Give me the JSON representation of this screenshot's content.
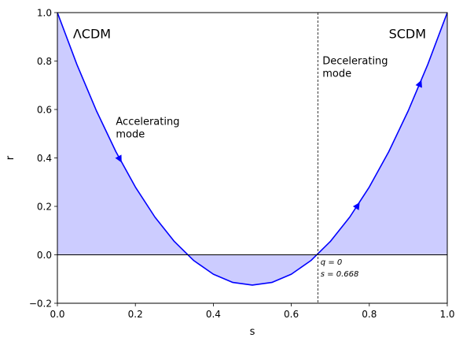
{
  "chart_data": {
    "type": "line",
    "xlabel": "s",
    "ylabel": "r",
    "xlim": [
      0.0,
      1.0
    ],
    "ylim": [
      -0.2,
      1.0
    ],
    "x_ticks": [
      "0.0",
      "0.2",
      "0.4",
      "0.6",
      "0.8",
      "1.0"
    ],
    "y_ticks": [
      "−0.2",
      "0.0",
      "0.2",
      "0.4",
      "0.6",
      "0.8",
      "1.0"
    ],
    "grid": false,
    "series": [
      {
        "curve": "r = 4.5 s^2 - 4.5 s + 1",
        "x": [
          0.0,
          0.05,
          0.1,
          0.15,
          0.2,
          0.25,
          0.3,
          0.35,
          0.4,
          0.45,
          0.5,
          0.55,
          0.6,
          0.65,
          0.7,
          0.75,
          0.8,
          0.85,
          0.9,
          0.95,
          1.0
        ],
        "y": [
          1.0,
          0.786,
          0.595,
          0.426,
          0.28,
          0.156,
          0.055,
          -0.024,
          -0.08,
          -0.114,
          -0.125,
          -0.114,
          -0.08,
          -0.024,
          0.055,
          0.156,
          0.28,
          0.426,
          0.595,
          0.786,
          1.0
        ],
        "color": "#0000ff"
      }
    ],
    "fill_color": "#ccccff",
    "arrows": [
      {
        "x": 0.16,
        "y": 0.4
      },
      {
        "x": 0.77,
        "y": 0.2
      },
      {
        "x": 0.93,
        "y": 0.7
      }
    ],
    "vline_x": 0.668,
    "hline_y": 0.0,
    "annotations": [
      {
        "text": "ΛCDM",
        "x": 0.04,
        "y": 0.91
      },
      {
        "text": "SCDM",
        "x": 0.85,
        "y": 0.91
      },
      {
        "lines": [
          "Accelerating",
          "mode"
        ],
        "x": 0.15,
        "y": 0.55
      },
      {
        "lines": [
          "Decelerating",
          "mode"
        ],
        "x": 0.68,
        "y": 0.8
      },
      {
        "lines": [
          "q = 0",
          "s = 0.668"
        ],
        "x": 0.675,
        "y": -0.04
      }
    ]
  }
}
